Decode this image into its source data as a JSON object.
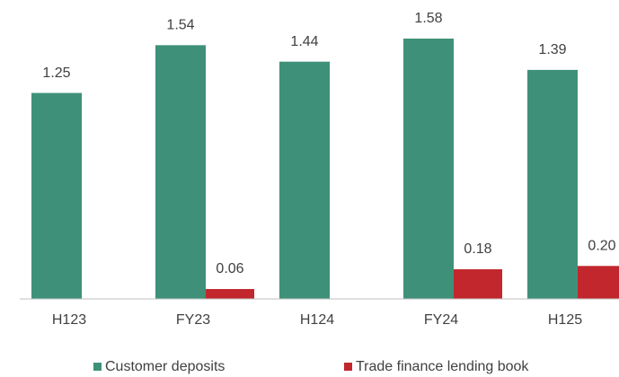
{
  "chart_data": {
    "type": "bar",
    "categories": [
      "H123",
      "FY23",
      "H124",
      "FY24",
      "H125"
    ],
    "series": [
      {
        "name": "Customer deposits",
        "color": "#3e9178",
        "values": [
          1.25,
          1.54,
          1.44,
          1.58,
          1.39
        ]
      },
      {
        "name": "Trade finance lending book",
        "color": "#c1272d",
        "values": [
          null,
          0.06,
          null,
          0.18,
          0.2
        ],
        "value_labels": [
          null,
          "0.06",
          null,
          "0.18",
          "0.20"
        ]
      }
    ],
    "legend": "bottom"
  }
}
